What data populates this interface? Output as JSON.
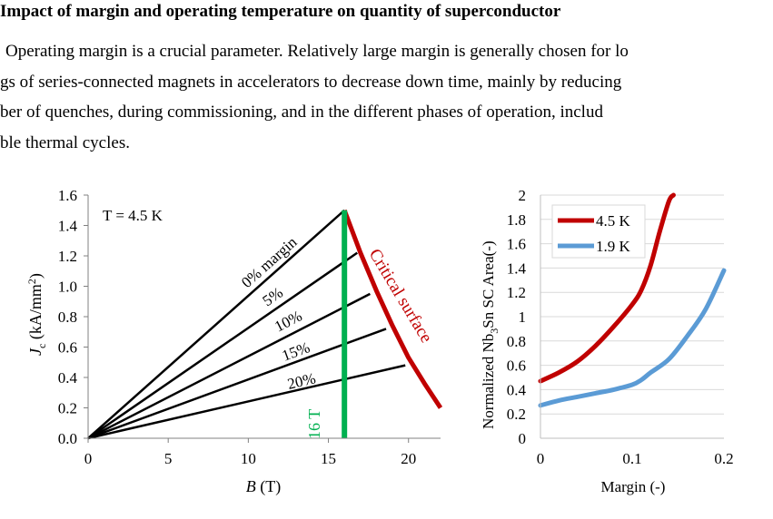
{
  "text": {
    "heading": "Impact of margin and operating temperature on quantity of superconductor",
    "line1": "Operating margin is a crucial parameter. Relatively large margin is generally chosen for lo",
    "line2": "gs of series-connected magnets in accelerators to decrease down time, mainly by reducing",
    "line3": "ber of quenches, during commissioning, and in the different phases of operation, includ",
    "line4": "ble thermal cycles."
  },
  "chart_data": [
    {
      "type": "line",
      "xlabel_var": "B",
      "xlabel_unit": "(T)",
      "ylabel_var": "J",
      "ylabel_sub": "c",
      "ylabel_unit": "(kA/mm",
      "ylabel_sup": "2",
      "ylabel_end": ")",
      "xlim": [
        0,
        22
      ],
      "ylim": [
        0,
        1.6
      ],
      "xticks": [
        "0",
        "5",
        "10",
        "15",
        "20"
      ],
      "yticks": [
        "0.0",
        "0.2",
        "0.4",
        "0.6",
        "0.8",
        "1.0",
        "1.2",
        "1.4",
        "1.6"
      ],
      "annotation_temp": "T = 4.5 K",
      "critical_label": "Critical surface",
      "field_label": "16 T",
      "critical_surface": {
        "x": [
          16,
          17,
          18,
          19,
          20,
          21,
          22
        ],
        "y": [
          1.5,
          1.22,
          0.97,
          0.74,
          0.53,
          0.36,
          0.2
        ]
      },
      "field_line_x": 16,
      "load_lines": [
        {
          "label": "0% margin",
          "end": [
            16,
            1.5
          ]
        },
        {
          "label": "5%",
          "end": [
            16.8,
            1.22
          ]
        },
        {
          "label": "10%",
          "end": [
            17.6,
            0.95
          ]
        },
        {
          "label": "15%",
          "end": [
            18.6,
            0.72
          ]
        },
        {
          "label": "20%",
          "end": [
            19.8,
            0.48
          ]
        }
      ],
      "colors": {
        "load": "#000000",
        "critical": "#c00000",
        "field": "#00b050"
      }
    },
    {
      "type": "line",
      "xlabel": "Margin (-)",
      "ylabel_pre": "Normalized Nb",
      "ylabel_sub": "3",
      "ylabel_post": "Sn SC Area(-)",
      "xlim": [
        0,
        0.2
      ],
      "ylim": [
        0,
        2
      ],
      "xticks": [
        "0",
        "0.1",
        "0.2"
      ],
      "yticks": [
        "0",
        "0.2",
        "0.4",
        "0.6",
        "0.8",
        "1",
        "1.2",
        "1.4",
        "1.6",
        "1.8",
        "2"
      ],
      "series": [
        {
          "name": "4.5 K",
          "color": "#c00000",
          "x": [
            0,
            0.02,
            0.04,
            0.06,
            0.08,
            0.1,
            0.11,
            0.12,
            0.13,
            0.14,
            0.145
          ],
          "y": [
            0.47,
            0.54,
            0.63,
            0.76,
            0.92,
            1.1,
            1.22,
            1.42,
            1.7,
            1.95,
            2.0
          ]
        },
        {
          "name": "1.9 K",
          "color": "#5b9bd5",
          "x": [
            0,
            0.02,
            0.04,
            0.06,
            0.08,
            0.1,
            0.11,
            0.12,
            0.14,
            0.16,
            0.18,
            0.2
          ],
          "y": [
            0.27,
            0.31,
            0.34,
            0.37,
            0.4,
            0.44,
            0.48,
            0.54,
            0.65,
            0.84,
            1.06,
            1.38
          ]
        }
      ]
    }
  ]
}
